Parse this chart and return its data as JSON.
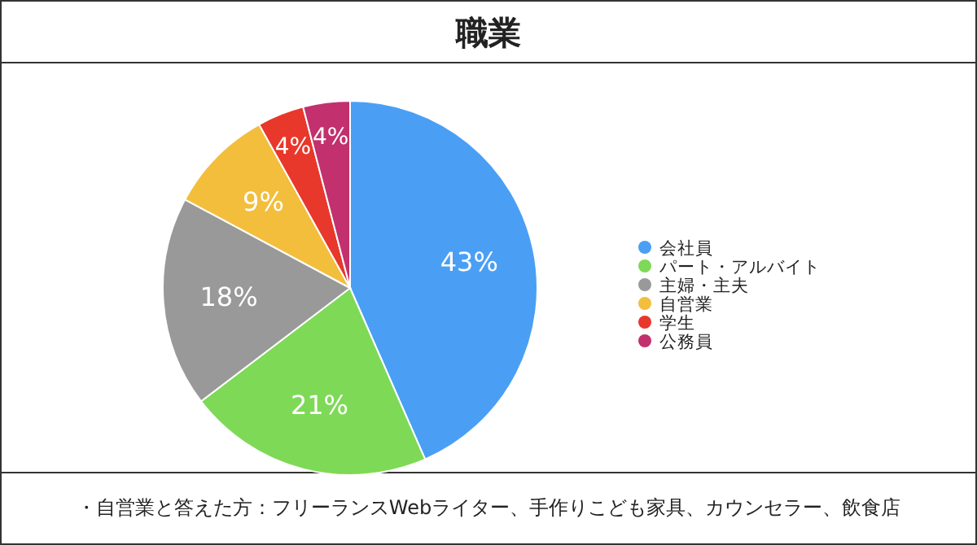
{
  "chart_data": {
    "type": "pie",
    "title": "職業",
    "categories": [
      "会社員",
      "パート・アルバイト",
      "主婦・主夫",
      "自営業",
      "学生",
      "公務員"
    ],
    "values": [
      43,
      21,
      18,
      9,
      4,
      4
    ],
    "colors": [
      "#4a9ff5",
      "#7ed957",
      "#999999",
      "#f2be3c",
      "#e8382b",
      "#c2306e"
    ],
    "value_labels": [
      "43%",
      "21%",
      "18%",
      "9%",
      "4%",
      "4%"
    ],
    "legend": "right",
    "annotations": [
      "・自営業と答えた方：フリーランスWebライター、手作りこども家具、カウンセラー、飲食店"
    ]
  }
}
